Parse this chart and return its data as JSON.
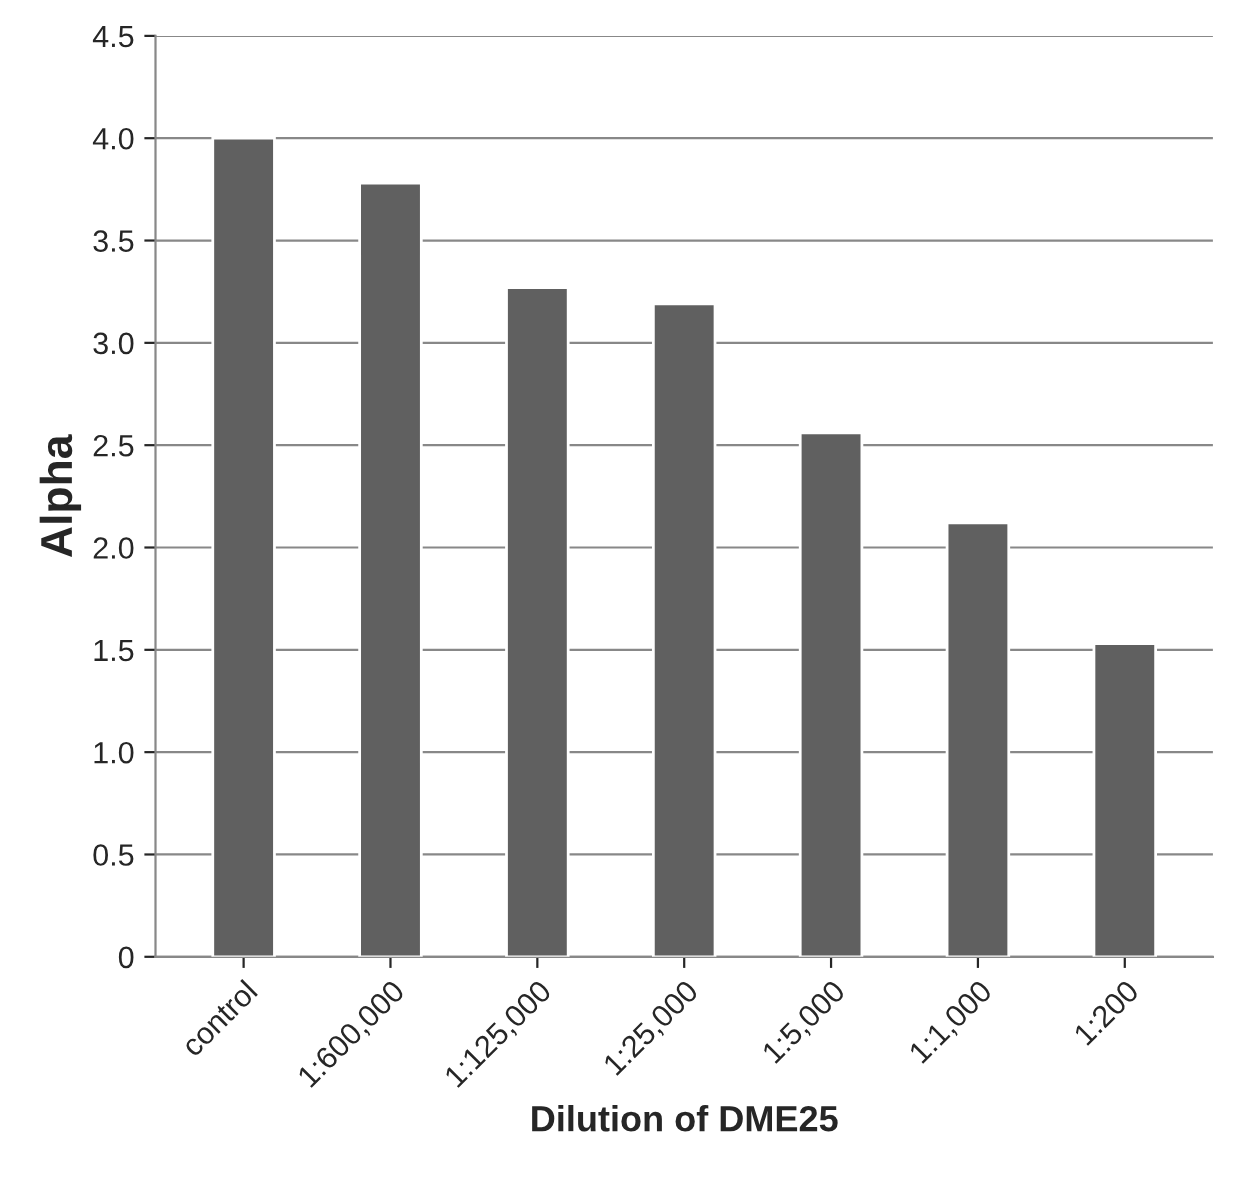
{
  "chart_data": {
    "type": "bar",
    "xlabel": "Dilution of DME25",
    "ylabel": "Alpha",
    "categories": [
      "control",
      "1:600,000",
      "1:125,000",
      "1:25,000",
      "1:5,000",
      "1:1,000",
      "1:200"
    ],
    "values": [
      4.0,
      3.78,
      3.27,
      3.19,
      2.56,
      2.12,
      1.53
    ],
    "color": "#606060",
    "ylim": [
      0,
      4.5
    ],
    "yticks": [
      0,
      {
        "value": 0.5,
        "label": "0.5"
      },
      {
        "value": 1,
        "label": "1.0"
      },
      {
        "value": 1.5,
        "label": "1.5"
      },
      {
        "value": 2,
        "label": "2.0"
      },
      {
        "value": 2.5,
        "label": "2.5"
      },
      {
        "value": 3,
        "label": "3.0"
      },
      {
        "value": 3.5,
        "label": "3.5"
      },
      {
        "value": 4,
        "label": "4.0"
      },
      {
        "value": 4.5,
        "label": "4.5"
      }
    ],
    "grid": "y"
  }
}
